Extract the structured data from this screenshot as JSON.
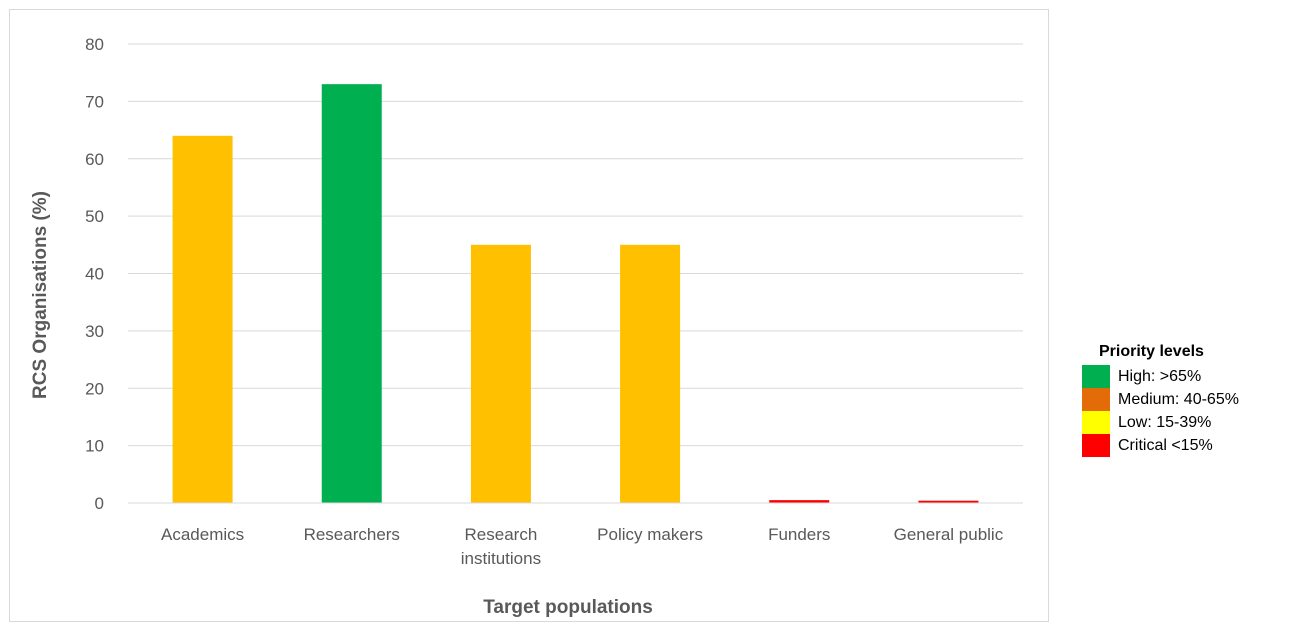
{
  "chart_data": {
    "type": "bar",
    "categories": [
      "Academics",
      "Researchers",
      "Research institutions",
      "Policy makers",
      "Funders",
      "General public"
    ],
    "category_lines": [
      [
        "Academics"
      ],
      [
        "Researchers"
      ],
      [
        "Research",
        "institutions"
      ],
      [
        "Policy makers"
      ],
      [
        "Funders"
      ],
      [
        "General public"
      ]
    ],
    "values": [
      64,
      73,
      45,
      45,
      0.5,
      0.4
    ],
    "bar_colors": [
      "#ffc000",
      "#00b050",
      "#ffc000",
      "#ffc000",
      "#ff0000",
      "#ff0000"
    ],
    "xlabel": "Target populations",
    "ylabel": "RCS Organisations (%)",
    "ylim": [
      0,
      80
    ],
    "yticks": [
      0,
      10,
      20,
      30,
      40,
      50,
      60,
      70,
      80
    ],
    "grid": true,
    "legend_position": "right"
  },
  "legend": {
    "title": "Priority levels",
    "items": [
      {
        "label": "High: >65%",
        "color": "#00b050"
      },
      {
        "label": "Medium: 40-65%",
        "color": "#e36c09"
      },
      {
        "label": "Low: 15-39%",
        "color": "#ffff00"
      },
      {
        "label": "Critical <15%",
        "color": "#ff0000"
      }
    ]
  }
}
